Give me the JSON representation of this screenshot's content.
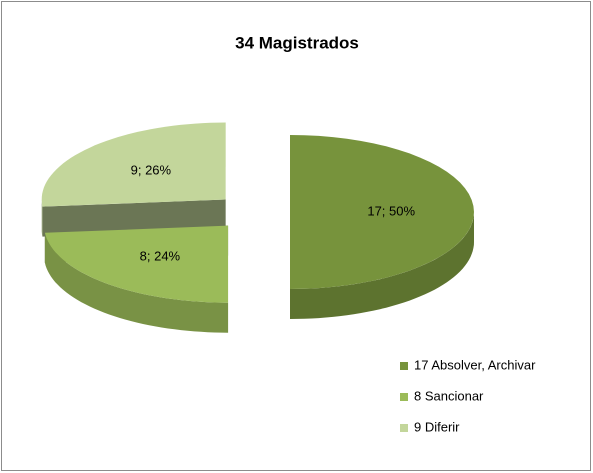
{
  "chart_data": {
    "type": "pie3d",
    "title": "34 Magistrados",
    "categories": [
      "17 Absolver, Archivar",
      "8 Sancionar",
      "9 Diferir"
    ],
    "values": [
      17,
      8,
      9
    ],
    "value_labels": [
      "17; 50%",
      "8; 24%",
      "9; 26%"
    ],
    "colors": [
      "#77933c",
      "#9bbb59",
      "#c3d69b"
    ],
    "legend": "right"
  }
}
